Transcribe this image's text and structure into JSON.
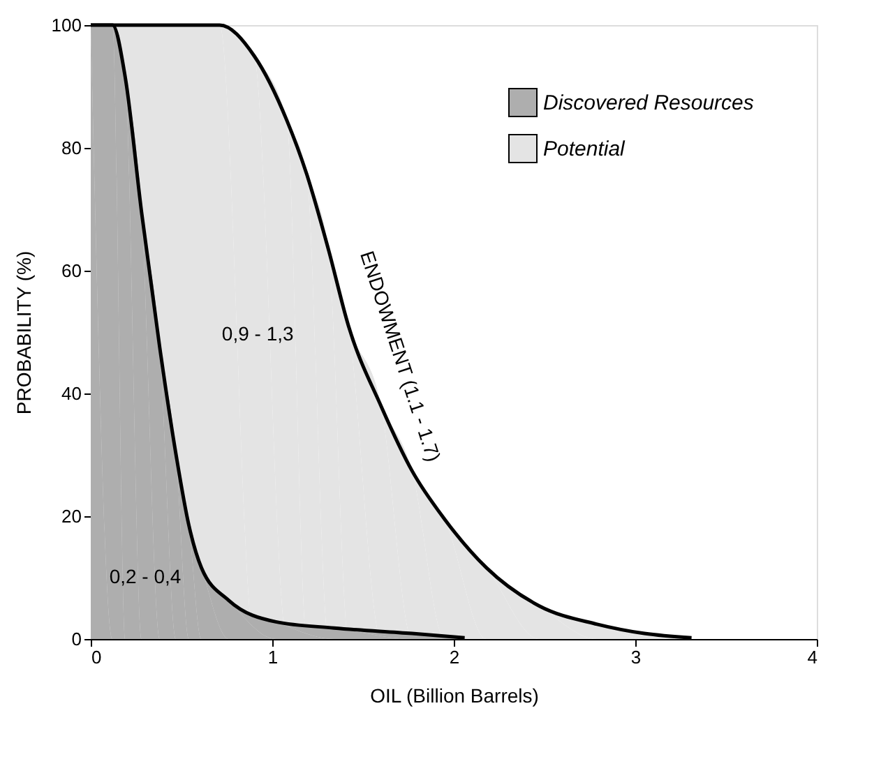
{
  "chart_data": {
    "type": "area",
    "xlabel": "OIL (Billion Barrels)",
    "ylabel": "PROBABILITY (%)",
    "xlim": [
      0,
      4
    ],
    "ylim": [
      0,
      100
    ],
    "xticks": [
      0,
      1,
      2,
      3,
      4
    ],
    "yticks": [
      0,
      20,
      40,
      60,
      80,
      100
    ],
    "grid": false,
    "legend": "top right",
    "series": [
      {
        "name": "Discovered Resources",
        "color": "#aeaeae",
        "x": [
          0,
          0.12,
          0.19,
          0.28,
          0.38,
          0.47,
          0.54,
          0.61,
          0.76,
          1.02,
          1.34,
          1.77,
          2.06
        ],
        "values": [
          100,
          100,
          91.5,
          69.5,
          47.5,
          30,
          18.6,
          11.6,
          6.3,
          2.8,
          1.8,
          0.9,
          0.2
        ]
      },
      {
        "name": "Potential",
        "color": "#e4e4e4",
        "x": [
          0,
          0.71,
          0.9,
          1.08,
          1.19,
          1.31,
          1.42,
          1.6,
          1.77,
          1.95,
          2.18,
          2.47,
          2.79,
          3.05,
          3.31
        ],
        "values": [
          100,
          100,
          95,
          84.5,
          75.7,
          63.4,
          51,
          37.9,
          27.4,
          19.5,
          11.6,
          5.4,
          2.4,
          0.9,
          0.2
        ]
      }
    ],
    "annotations": [
      "0,9 - 1,3",
      "0,2 - 0,4",
      "ENDOWMENT (1.1 - 1.7)"
    ]
  }
}
